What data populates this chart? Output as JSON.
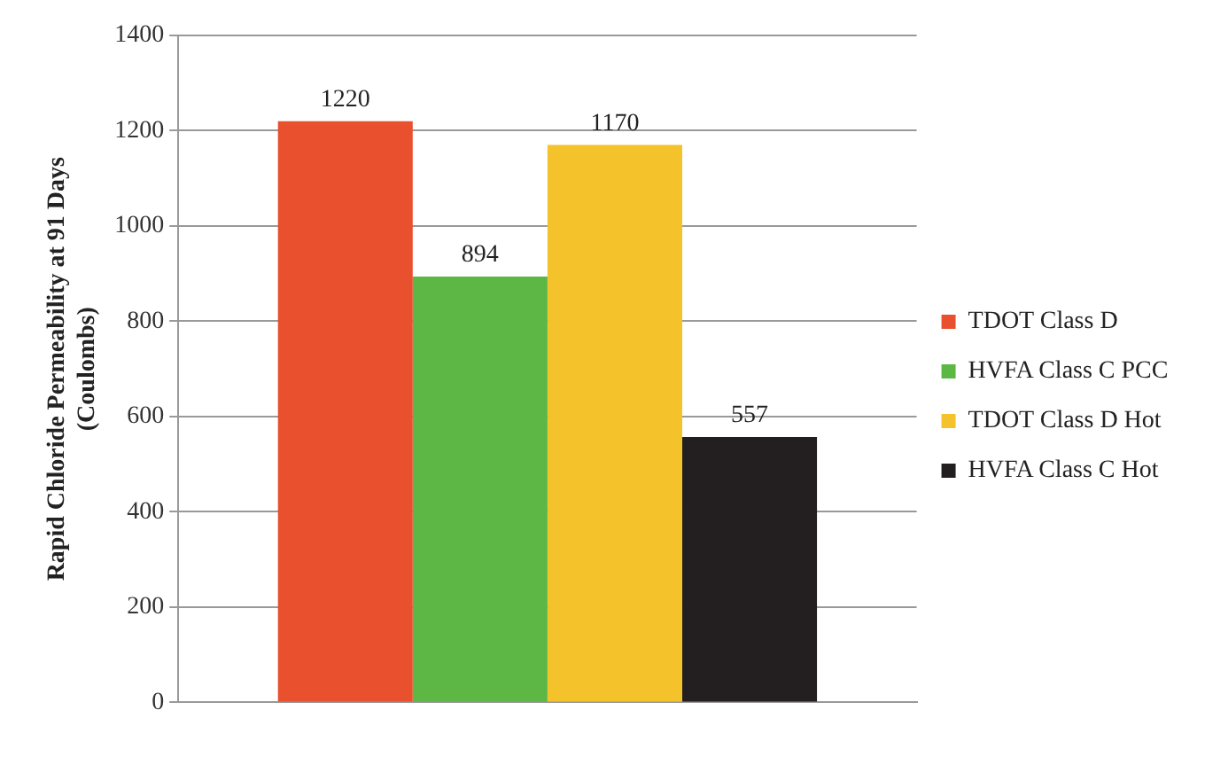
{
  "chart_data": {
    "type": "bar",
    "ylabel": "Rapid Chloride Permeability at 91 Days\n(Coulombs)",
    "categories": [
      null
    ],
    "series": [
      {
        "name": "TDOT Class D",
        "color": "#e8502e",
        "values": [
          1220
        ]
      },
      {
        "name": "HVFA Class C PCC",
        "color": "#5cb744",
        "values": [
          894
        ]
      },
      {
        "name": "TDOT Class D Hot",
        "color": "#f4c22b",
        "values": [
          1170
        ]
      },
      {
        "name": "HVFA Class C Hot",
        "color": "#231f20",
        "values": [
          557
        ]
      }
    ],
    "ylim": [
      0,
      1400
    ],
    "yticks": [
      0,
      200,
      400,
      600,
      800,
      1000,
      1200,
      1400
    ],
    "grid": "y",
    "legend": "right",
    "data_labels": true
  }
}
